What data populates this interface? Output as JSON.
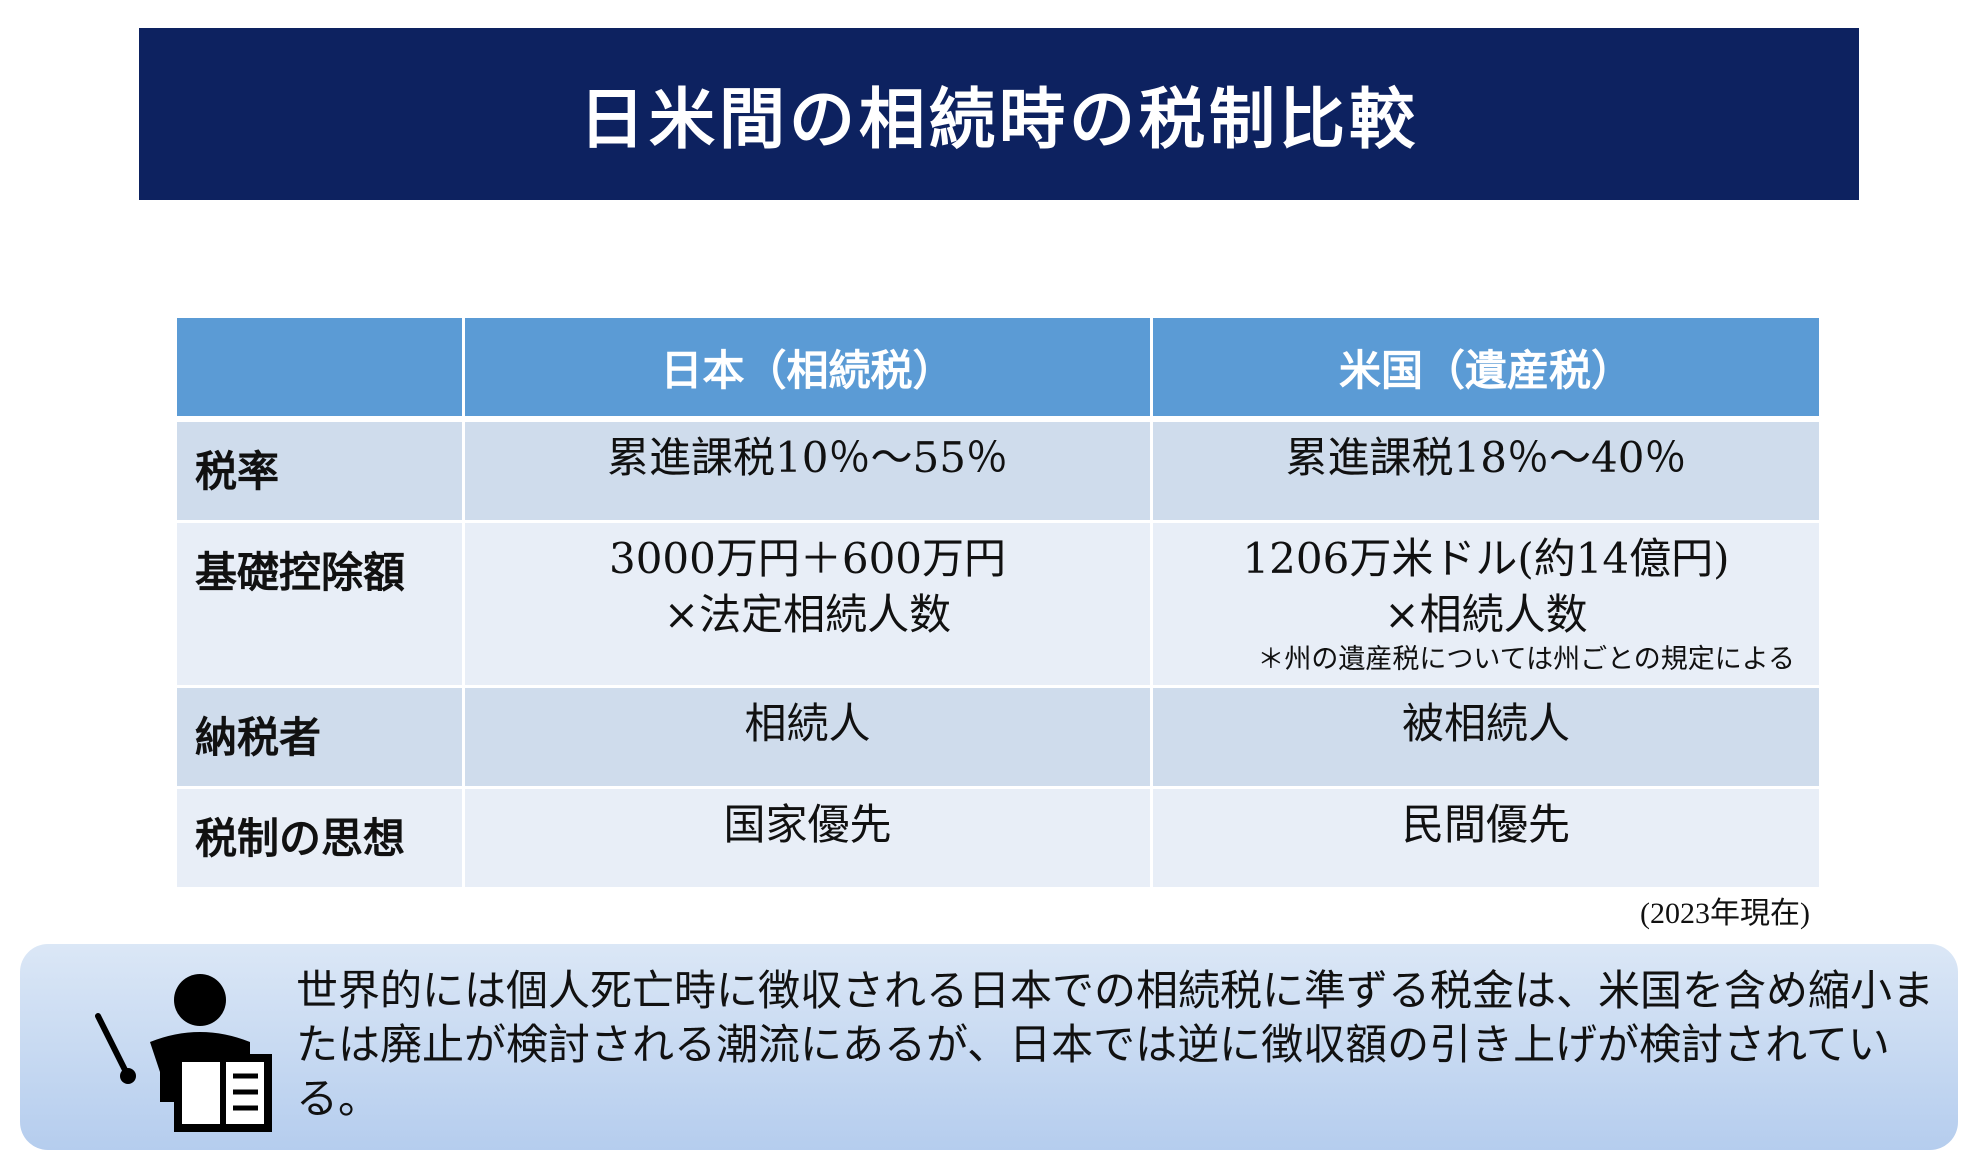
{
  "title": "日米間の相続時の税制比較",
  "table": {
    "headers": [
      "",
      "日本（相続税）",
      "米国（遺産税）"
    ],
    "rows": [
      {
        "label": "税率",
        "japan": [
          "累進課税10％～55％"
        ],
        "us": [
          "累進課税18％～40％"
        ]
      },
      {
        "label": "基礎控除額",
        "japan": [
          "3000万円＋600万円",
          "×法定相続人数"
        ],
        "us": [
          "1206万米ドル(約14億円)",
          "×相続人数"
        ],
        "us_note": "＊州の遺産税については州ごとの規定による"
      },
      {
        "label": "納税者",
        "japan": [
          "相続人"
        ],
        "us": [
          "被相続人"
        ]
      },
      {
        "label": "税制の思想",
        "japan": [
          "国家優先"
        ],
        "us": [
          "民間優先"
        ]
      }
    ],
    "as_of": "(2023年現在)"
  },
  "info": {
    "text": "世界的には個人死亡時に徴収される日本での相続税に準ずる税金は、米国を含め縮小または廃止が検討される潮流にあるが、日本では逆に徴収額の引き上げが検討されている。",
    "icon": "teacher-icon"
  },
  "colors": {
    "banner": "#0d2260",
    "header": "#5b9bd5",
    "row_dark": "#cfdcec",
    "row_light": "#e8eef7"
  }
}
